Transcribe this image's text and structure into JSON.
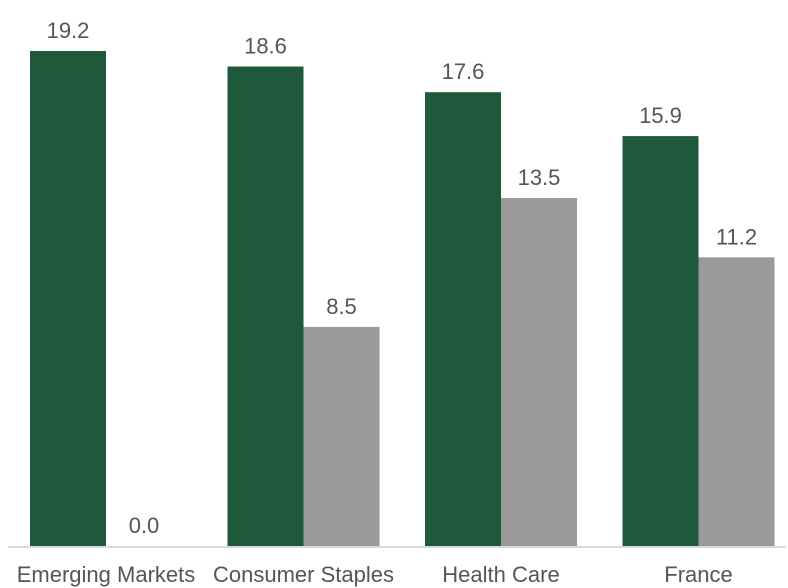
{
  "chart_data": {
    "type": "bar",
    "title": "",
    "xlabel": "",
    "ylabel": "",
    "categories": [
      "Emerging Markets",
      "Consumer Staples",
      "Health Care",
      "France"
    ],
    "series": [
      {
        "values": [
          19.2,
          18.6,
          17.6,
          15.9
        ],
        "color": "#1e5a3a"
      },
      {
        "values": [
          0.0,
          8.5,
          13.5,
          11.2
        ],
        "color": "#9a9a9b"
      }
    ],
    "data_labels": [
      [
        "19.2",
        "18.6",
        "17.6",
        "15.9"
      ],
      [
        "0.0",
        "8.5",
        "13.5",
        "11.2"
      ]
    ],
    "ylim": [
      0,
      19.2
    ],
    "grid": false,
    "legend": "none",
    "axis_color": "#d9d9d9",
    "text_color": "#555555"
  }
}
